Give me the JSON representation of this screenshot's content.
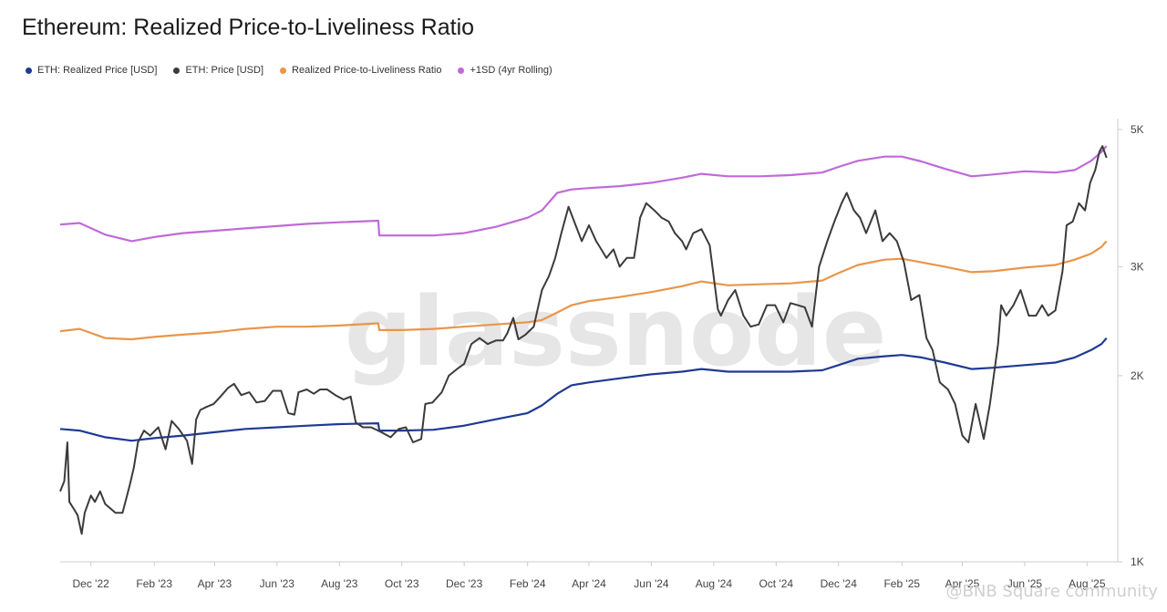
{
  "title": "Ethereum: Realized Price-to-Liveliness Ratio",
  "watermark": "glassnode",
  "footer_watermark": "@BNB Square community",
  "colors": {
    "realized": "#1f3a93",
    "price": "#3b3b3b",
    "rpl": "#e8964a",
    "sd": "#c06ad8"
  },
  "legend": [
    {
      "label": "ETH: Realized Price [USD]",
      "color": "#1f3a93"
    },
    {
      "label": "ETH: Price [USD]",
      "color": "#3b3b3b"
    },
    {
      "label": "Realized Price-to-Liveliness Ratio",
      "color": "#e8964a"
    },
    {
      "label": "+1SD (4yr Rolling)",
      "color": "#c06ad8"
    }
  ],
  "chart_data": {
    "type": "line",
    "title": "Ethereum: Realized Price-to-Liveliness Ratio",
    "y_scale": "log",
    "ylim": [
      1000,
      5000
    ],
    "y_ticks": [
      {
        "value": 1000,
        "label": "1K"
      },
      {
        "value": 2000,
        "label": "2K"
      },
      {
        "value": 3000,
        "label": "3K"
      },
      {
        "value": 5000,
        "label": "5K"
      }
    ],
    "xlim": [
      "2022-11-01",
      "2025-08-31"
    ],
    "x_ticks": [
      {
        "date": "2022-12-01",
        "label": "Dec '22"
      },
      {
        "date": "2023-02-01",
        "label": "Feb '23"
      },
      {
        "date": "2023-04-01",
        "label": "Apr '23"
      },
      {
        "date": "2023-06-01",
        "label": "Jun '23"
      },
      {
        "date": "2023-08-01",
        "label": "Aug '23"
      },
      {
        "date": "2023-10-01",
        "label": "Oct '23"
      },
      {
        "date": "2023-12-01",
        "label": "Dec '23"
      },
      {
        "date": "2024-02-01",
        "label": "Feb '24"
      },
      {
        "date": "2024-04-01",
        "label": "Apr '24"
      },
      {
        "date": "2024-06-01",
        "label": "Jun '24"
      },
      {
        "date": "2024-08-01",
        "label": "Aug '24"
      },
      {
        "date": "2024-10-01",
        "label": "Oct '24"
      },
      {
        "date": "2024-12-01",
        "label": "Dec '24"
      },
      {
        "date": "2025-02-01",
        "label": "Feb '25"
      },
      {
        "date": "2025-04-01",
        "label": "Apr '25"
      },
      {
        "date": "2025-06-01",
        "label": "Jun '25"
      },
      {
        "date": "2025-08-01",
        "label": "Aug '25"
      }
    ],
    "series": [
      {
        "name": "+1SD (4yr Rolling)",
        "key": "sd",
        "x": [
          "2022-11-01",
          "2022-11-20",
          "2022-12-15",
          "2023-01-10",
          "2023-02-01",
          "2023-03-01",
          "2023-04-01",
          "2023-05-01",
          "2023-06-01",
          "2023-07-01",
          "2023-08-01",
          "2023-09-08",
          "2023-09-09",
          "2023-10-01",
          "2023-11-01",
          "2023-12-01",
          "2024-01-01",
          "2024-02-01",
          "2024-02-15",
          "2024-03-01",
          "2024-03-15",
          "2024-04-01",
          "2024-05-01",
          "2024-06-01",
          "2024-07-01",
          "2024-07-20",
          "2024-08-15",
          "2024-09-15",
          "2024-10-15",
          "2024-11-15",
          "2024-12-01",
          "2024-12-20",
          "2025-01-15",
          "2025-02-01",
          "2025-02-20",
          "2025-03-15",
          "2025-04-10",
          "2025-05-01",
          "2025-06-01",
          "2025-07-01",
          "2025-07-20",
          "2025-08-05",
          "2025-08-15",
          "2025-08-20"
        ],
        "values": [
          3510,
          3530,
          3380,
          3300,
          3350,
          3400,
          3430,
          3460,
          3490,
          3520,
          3540,
          3560,
          3370,
          3370,
          3370,
          3400,
          3480,
          3600,
          3700,
          3950,
          4000,
          4020,
          4050,
          4100,
          4180,
          4240,
          4200,
          4200,
          4220,
          4260,
          4350,
          4450,
          4520,
          4520,
          4440,
          4320,
          4200,
          4230,
          4280,
          4260,
          4300,
          4450,
          4600,
          4700
        ]
      },
      {
        "name": "Realized Price-to-Liveliness Ratio",
        "key": "rpl",
        "x": [
          "2022-11-01",
          "2022-11-20",
          "2022-12-15",
          "2023-01-10",
          "2023-02-01",
          "2023-03-01",
          "2023-04-01",
          "2023-05-01",
          "2023-06-01",
          "2023-07-01",
          "2023-08-01",
          "2023-09-08",
          "2023-09-09",
          "2023-10-01",
          "2023-11-01",
          "2023-12-01",
          "2024-01-01",
          "2024-02-01",
          "2024-02-15",
          "2024-03-01",
          "2024-03-15",
          "2024-04-01",
          "2024-05-01",
          "2024-06-01",
          "2024-07-01",
          "2024-07-20",
          "2024-08-15",
          "2024-09-15",
          "2024-10-15",
          "2024-11-15",
          "2024-12-01",
          "2024-12-20",
          "2025-01-15",
          "2025-02-01",
          "2025-02-20",
          "2025-03-15",
          "2025-04-10",
          "2025-05-01",
          "2025-06-01",
          "2025-07-01",
          "2025-07-20",
          "2025-08-05",
          "2025-08-15",
          "2025-08-20"
        ],
        "values": [
          2360,
          2380,
          2300,
          2290,
          2310,
          2330,
          2350,
          2380,
          2400,
          2400,
          2410,
          2430,
          2370,
          2370,
          2380,
          2400,
          2420,
          2440,
          2460,
          2530,
          2600,
          2640,
          2680,
          2730,
          2790,
          2840,
          2800,
          2810,
          2820,
          2850,
          2930,
          3020,
          3080,
          3090,
          3050,
          3000,
          2940,
          2950,
          2990,
          3020,
          3080,
          3150,
          3230,
          3300
        ]
      },
      {
        "name": "ETH: Realized Price [USD]",
        "key": "realized",
        "x": [
          "2022-11-01",
          "2022-11-20",
          "2022-12-15",
          "2023-01-10",
          "2023-02-01",
          "2023-03-01",
          "2023-04-01",
          "2023-05-01",
          "2023-06-01",
          "2023-07-01",
          "2023-08-01",
          "2023-09-08",
          "2023-09-09",
          "2023-10-01",
          "2023-11-01",
          "2023-12-01",
          "2024-01-01",
          "2024-02-01",
          "2024-02-15",
          "2024-03-01",
          "2024-03-15",
          "2024-04-01",
          "2024-05-01",
          "2024-06-01",
          "2024-07-01",
          "2024-07-20",
          "2024-08-15",
          "2024-09-15",
          "2024-10-15",
          "2024-11-15",
          "2024-12-01",
          "2024-12-20",
          "2025-01-15",
          "2025-02-01",
          "2025-02-20",
          "2025-03-15",
          "2025-04-10",
          "2025-05-01",
          "2025-06-01",
          "2025-07-01",
          "2025-07-20",
          "2025-08-05",
          "2025-08-15",
          "2025-08-20"
        ],
        "values": [
          1640,
          1630,
          1590,
          1570,
          1585,
          1600,
          1620,
          1640,
          1650,
          1660,
          1670,
          1675,
          1630,
          1630,
          1635,
          1660,
          1700,
          1740,
          1790,
          1870,
          1930,
          1950,
          1980,
          2010,
          2030,
          2050,
          2030,
          2030,
          2030,
          2040,
          2080,
          2130,
          2150,
          2160,
          2140,
          2100,
          2050,
          2060,
          2080,
          2100,
          2140,
          2200,
          2250,
          2300
        ]
      },
      {
        "name": "ETH: Price [USD]",
        "key": "price",
        "x": [
          "2022-11-01",
          "2022-11-05",
          "2022-11-08",
          "2022-11-10",
          "2022-11-14",
          "2022-11-18",
          "2022-11-22",
          "2022-11-25",
          "2022-12-01",
          "2022-12-05",
          "2022-12-10",
          "2022-12-15",
          "2022-12-20",
          "2022-12-25",
          "2023-01-01",
          "2023-01-08",
          "2023-01-12",
          "2023-01-16",
          "2023-01-22",
          "2023-01-28",
          "2023-02-05",
          "2023-02-12",
          "2023-02-18",
          "2023-02-25",
          "2023-03-05",
          "2023-03-10",
          "2023-03-14",
          "2023-03-18",
          "2023-03-24",
          "2023-03-31",
          "2023-04-08",
          "2023-04-14",
          "2023-04-20",
          "2023-04-27",
          "2023-05-05",
          "2023-05-12",
          "2023-05-20",
          "2023-05-28",
          "2023-06-05",
          "2023-06-12",
          "2023-06-18",
          "2023-06-22",
          "2023-06-30",
          "2023-07-07",
          "2023-07-13",
          "2023-07-20",
          "2023-07-28",
          "2023-08-05",
          "2023-08-12",
          "2023-08-17",
          "2023-08-24",
          "2023-09-01",
          "2023-09-11",
          "2023-09-20",
          "2023-09-28",
          "2023-10-05",
          "2023-10-12",
          "2023-10-20",
          "2023-10-24",
          "2023-10-31",
          "2023-11-09",
          "2023-11-16",
          "2023-11-24",
          "2023-12-01",
          "2023-12-08",
          "2023-12-16",
          "2023-12-24",
          "2024-01-01",
          "2024-01-08",
          "2024-01-12",
          "2024-01-18",
          "2024-01-23",
          "2024-01-30",
          "2024-02-07",
          "2024-02-15",
          "2024-02-22",
          "2024-02-28",
          "2024-03-05",
          "2024-03-12",
          "2024-03-19",
          "2024-03-25",
          "2024-04-01",
          "2024-04-08",
          "2024-04-13",
          "2024-04-18",
          "2024-04-25",
          "2024-05-01",
          "2024-05-08",
          "2024-05-15",
          "2024-05-21",
          "2024-05-27",
          "2024-06-04",
          "2024-06-11",
          "2024-06-18",
          "2024-06-24",
          "2024-07-01",
          "2024-07-05",
          "2024-07-12",
          "2024-07-20",
          "2024-07-28",
          "2024-08-05",
          "2024-08-08",
          "2024-08-15",
          "2024-08-22",
          "2024-08-30",
          "2024-09-06",
          "2024-09-14",
          "2024-09-22",
          "2024-09-30",
          "2024-10-08",
          "2024-10-15",
          "2024-10-22",
          "2024-10-29",
          "2024-11-05",
          "2024-11-12",
          "2024-11-20",
          "2024-11-27",
          "2024-12-04",
          "2024-12-09",
          "2024-12-16",
          "2024-12-22",
          "2024-12-28",
          "2025-01-06",
          "2025-01-13",
          "2025-01-20",
          "2025-01-27",
          "2025-02-03",
          "2025-02-10",
          "2025-02-18",
          "2025-02-25",
          "2025-03-03",
          "2025-03-10",
          "2025-03-18",
          "2025-03-25",
          "2025-04-01",
          "2025-04-07",
          "2025-04-14",
          "2025-04-22",
          "2025-04-28",
          "2025-05-06",
          "2025-05-09",
          "2025-05-14",
          "2025-05-21",
          "2025-05-28",
          "2025-06-05",
          "2025-06-12",
          "2025-06-18",
          "2025-06-24",
          "2025-07-01",
          "2025-07-08",
          "2025-07-12",
          "2025-07-18",
          "2025-07-24",
          "2025-07-30",
          "2025-08-04",
          "2025-08-09",
          "2025-08-13",
          "2025-08-16",
          "2025-08-20"
        ],
        "values": [
          1300,
          1350,
          1560,
          1250,
          1220,
          1190,
          1110,
          1200,
          1280,
          1250,
          1300,
          1240,
          1220,
          1200,
          1200,
          1330,
          1420,
          1560,
          1630,
          1600,
          1650,
          1520,
          1690,
          1640,
          1570,
          1440,
          1700,
          1760,
          1780,
          1800,
          1860,
          1910,
          1940,
          1860,
          1880,
          1810,
          1820,
          1890,
          1890,
          1740,
          1730,
          1880,
          1900,
          1870,
          1900,
          1900,
          1860,
          1830,
          1850,
          1680,
          1650,
          1650,
          1620,
          1590,
          1640,
          1650,
          1560,
          1580,
          1800,
          1810,
          1880,
          2000,
          2050,
          2090,
          2250,
          2300,
          2250,
          2280,
          2280,
          2340,
          2480,
          2290,
          2330,
          2400,
          2750,
          2900,
          3100,
          3400,
          3750,
          3500,
          3300,
          3500,
          3300,
          3200,
          3100,
          3200,
          3000,
          3100,
          3100,
          3600,
          3800,
          3700,
          3600,
          3550,
          3400,
          3300,
          3200,
          3400,
          3450,
          3250,
          2560,
          2500,
          2650,
          2750,
          2500,
          2400,
          2420,
          2600,
          2600,
          2440,
          2620,
          2600,
          2580,
          2400,
          3000,
          3300,
          3550,
          3800,
          3950,
          3700,
          3600,
          3400,
          3700,
          3300,
          3400,
          3300,
          3050,
          2650,
          2700,
          2300,
          2200,
          1950,
          1900,
          1800,
          1600,
          1560,
          1800,
          1580,
          1800,
          2250,
          2600,
          2500,
          2600,
          2750,
          2500,
          2500,
          2600,
          2500,
          2550,
          2950,
          3500,
          3550,
          3800,
          3700,
          4100,
          4300,
          4600,
          4700,
          4500
        ]
      }
    ]
  }
}
